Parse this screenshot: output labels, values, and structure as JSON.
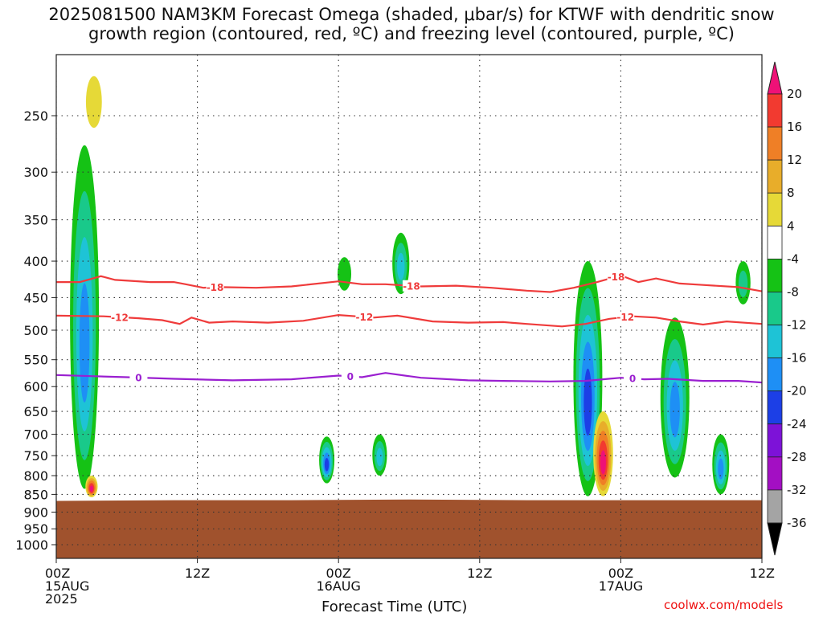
{
  "title_line1": "2025081500 NAM3KM Forecast Omega (shaded, μbar/s) for KTWF with dendritic snow",
  "title_line2": "growth region (contoured, red, ºC) and freezing level (contoured, purple, ºC)",
  "credit": "coolwx.com/models",
  "chart_data": {
    "type": "heatmap",
    "title": "2025081500 NAM3KM Forecast Omega (shaded, μbar/s) for KTWF with dendritic snow growth region (contoured, red, ºC) and freezing level (contoured, purple, ºC)",
    "xlabel": "Forecast Time (UTC)",
    "ylabel": "",
    "x_range_hours": [
      0,
      60
    ],
    "y_range_hpa": [
      200,
      1050
    ],
    "y_scale": "log-pressure",
    "grid": true,
    "x_ticks": [
      {
        "hour": 0,
        "label": "00Z",
        "sub": "15AUG",
        "sub2": "2025"
      },
      {
        "hour": 12,
        "label": "12Z",
        "sub": "",
        "sub2": ""
      },
      {
        "hour": 24,
        "label": "00Z",
        "sub": "16AUG",
        "sub2": ""
      },
      {
        "hour": 36,
        "label": "12Z",
        "sub": "",
        "sub2": ""
      },
      {
        "hour": 48,
        "label": "00Z",
        "sub": "17AUG",
        "sub2": ""
      },
      {
        "hour": 60,
        "label": "12Z",
        "sub": "",
        "sub2": ""
      }
    ],
    "y_ticks": [
      {
        "hpa": 250,
        "label": "250"
      },
      {
        "hpa": 300,
        "label": "300"
      },
      {
        "hpa": 350,
        "label": "350"
      },
      {
        "hpa": 400,
        "label": "400"
      },
      {
        "hpa": 450,
        "label": "450"
      },
      {
        "hpa": 500,
        "label": "500"
      },
      {
        "hpa": 550,
        "label": "550"
      },
      {
        "hpa": 600,
        "label": "600"
      },
      {
        "hpa": 650,
        "label": "650"
      },
      {
        "hpa": 700,
        "label": "700"
      },
      {
        "hpa": 750,
        "label": "750"
      },
      {
        "hpa": 800,
        "label": "800"
      },
      {
        "hpa": 850,
        "label": "850"
      },
      {
        "hpa": 900,
        "label": "900"
      },
      {
        "hpa": 950,
        "label": "950"
      },
      {
        "hpa": 1000,
        "label": "1000"
      }
    ],
    "terrain": {
      "surface_hpa": [
        [
          0,
          868
        ],
        [
          10,
          866
        ],
        [
          20,
          866
        ],
        [
          30,
          864
        ],
        [
          40,
          866
        ],
        [
          50,
          866
        ],
        [
          60,
          866
        ]
      ],
      "color": "#a0522d"
    },
    "colorbar": {
      "levels": [
        20,
        16,
        12,
        8,
        4,
        -4,
        -8,
        -12,
        -16,
        -20,
        -24,
        -28,
        -32,
        -36
      ],
      "labels": [
        "20",
        "16",
        "12",
        "8",
        "4",
        "-4",
        "-8",
        "-12",
        "-16",
        "-20",
        "-24",
        "-28",
        "-32",
        "-36"
      ],
      "colors": [
        "#ee1177",
        "#f23a30",
        "#ef7f26",
        "#e8ad2a",
        "#e6d937",
        "#ffffff",
        "#15c215",
        "#19c98a",
        "#1ec3d6",
        "#1e8ff5",
        "#1c3fe6",
        "#7d12d8",
        "#a30fc3",
        "#a4a4a4",
        "#000000"
      ]
    },
    "contours": [
      {
        "name": "-18",
        "color": "#ef3b3b",
        "label_hours": [
          13.5,
          30.2,
          47.6
        ],
        "points": [
          [
            0,
            428
          ],
          [
            2,
            428
          ],
          [
            3.8,
            420
          ],
          [
            5,
            425
          ],
          [
            8,
            428
          ],
          [
            10,
            428
          ],
          [
            11,
            431
          ],
          [
            12.5,
            436
          ],
          [
            14,
            435
          ],
          [
            17,
            436
          ],
          [
            20,
            434
          ],
          [
            24,
            427
          ],
          [
            26,
            431
          ],
          [
            28,
            431
          ],
          [
            31,
            434
          ],
          [
            34,
            433
          ],
          [
            37,
            436
          ],
          [
            40,
            440
          ],
          [
            42,
            442
          ],
          [
            44,
            436
          ],
          [
            46,
            428
          ],
          [
            48,
            419
          ],
          [
            49.5,
            428
          ],
          [
            51,
            423
          ],
          [
            53,
            430
          ],
          [
            55,
            432
          ],
          [
            58,
            435
          ],
          [
            60,
            441
          ]
        ]
      },
      {
        "name": "-12",
        "color": "#ef3b3b",
        "label_hours": [
          5.4,
          26.2,
          48.4
        ],
        "points": [
          [
            0,
            477
          ],
          [
            4,
            478
          ],
          [
            7,
            481
          ],
          [
            9,
            484
          ],
          [
            10.5,
            490
          ],
          [
            11.5,
            480
          ],
          [
            13,
            488
          ],
          [
            15,
            486
          ],
          [
            18,
            488
          ],
          [
            21,
            485
          ],
          [
            24,
            476
          ],
          [
            27,
            480
          ],
          [
            29,
            477
          ],
          [
            32,
            486
          ],
          [
            35,
            488
          ],
          [
            38,
            487
          ],
          [
            40,
            490
          ],
          [
            43,
            494
          ],
          [
            45,
            490
          ],
          [
            47,
            482
          ],
          [
            49,
            478
          ],
          [
            51,
            480
          ],
          [
            53,
            486
          ],
          [
            55,
            491
          ],
          [
            57,
            486
          ],
          [
            60,
            490
          ]
        ]
      },
      {
        "name": "0",
        "color": "#9a1fd0",
        "label_hours": [
          7.0,
          25.0,
          49.0
        ],
        "points": [
          [
            0,
            578
          ],
          [
            3,
            580
          ],
          [
            6,
            582
          ],
          [
            10,
            585
          ],
          [
            15,
            588
          ],
          [
            20,
            586
          ],
          [
            24,
            579
          ],
          [
            26,
            582
          ],
          [
            28,
            574
          ],
          [
            31,
            583
          ],
          [
            35,
            588
          ],
          [
            38,
            589
          ],
          [
            42,
            590
          ],
          [
            45,
            589
          ],
          [
            48,
            583
          ],
          [
            50,
            586
          ],
          [
            52,
            585
          ],
          [
            55,
            589
          ],
          [
            58,
            589
          ],
          [
            60,
            592
          ]
        ]
      }
    ],
    "omega_features": [
      {
        "hour": 2.4,
        "hpa_top": 275,
        "hpa_bot": 835,
        "min_omega": -16,
        "shape": "tall narrow upward-motion column"
      },
      {
        "hour": 3.0,
        "hpa_top": 800,
        "hpa_bot": 858,
        "max_omega": 20,
        "shape": "surface-based downward motion"
      },
      {
        "hour": 3.2,
        "hpa_top": 220,
        "hpa_bot": 260,
        "max_omega": 4,
        "shape": "small positive patch"
      },
      {
        "hour": 24.5,
        "hpa_top": 395,
        "hpa_bot": 440,
        "min_omega": -4,
        "shape": "small negative patch"
      },
      {
        "hour": 29.3,
        "hpa_top": 365,
        "hpa_bot": 445,
        "min_omega": -12,
        "shape": "small negative patch"
      },
      {
        "hour": 23.0,
        "hpa_top": 705,
        "hpa_bot": 820,
        "min_omega": -20,
        "shape": "compact upward-motion cell"
      },
      {
        "hour": 27.5,
        "hpa_top": 700,
        "hpa_bot": 800,
        "min_omega": -12,
        "shape": "broad upward-motion cell"
      },
      {
        "hour": 45.2,
        "hpa_top": 400,
        "hpa_bot": 855,
        "min_omega": -20,
        "shape": "tall upward-motion column"
      },
      {
        "hour": 46.5,
        "hpa_top": 650,
        "hpa_bot": 855,
        "max_omega": 20,
        "shape": "strong downward-motion core"
      },
      {
        "hour": 52.6,
        "hpa_top": 480,
        "hpa_bot": 805,
        "min_omega": -16,
        "shape": "sloping upward-motion band"
      },
      {
        "hour": 56.5,
        "hpa_top": 700,
        "hpa_bot": 850,
        "min_omega": -16,
        "shape": "lower-level upward-motion cell"
      },
      {
        "hour": 58.4,
        "hpa_top": 400,
        "hpa_bot": 460,
        "min_omega": -8,
        "shape": "small negative patch"
      }
    ]
  }
}
